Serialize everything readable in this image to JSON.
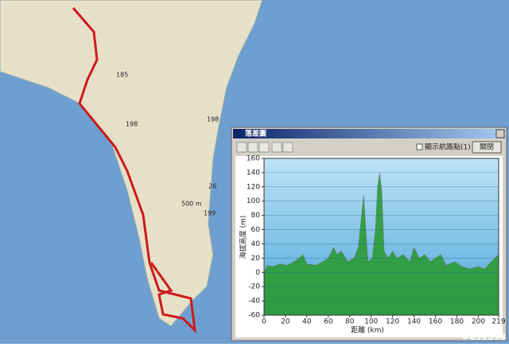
{
  "window": {
    "title": "落差圖",
    "checkbox": "顯示航路點(1)",
    "close_button": "關閉"
  },
  "map": {
    "labels": [
      "185",
      "198",
      "198",
      "199",
      "26",
      "500 m"
    ]
  },
  "watermark": "#651598",
  "chart_data": {
    "type": "area",
    "x_label": "距離 (km)",
    "y_label": "海拔高度 (m)",
    "x": [
      0,
      3,
      8,
      15,
      22,
      28,
      33,
      36,
      40,
      48,
      55,
      60,
      65,
      68,
      72,
      78,
      84,
      88,
      91,
      93,
      95,
      97,
      101,
      104,
      106,
      108,
      110,
      112,
      116,
      120,
      124,
      130,
      136,
      140,
      145,
      150,
      155,
      160,
      165,
      170,
      178,
      185,
      192,
      200,
      206,
      212,
      219
    ],
    "values": [
      0,
      10,
      8,
      12,
      10,
      15,
      20,
      25,
      12,
      10,
      15,
      20,
      35,
      25,
      30,
      15,
      20,
      35,
      80,
      108,
      60,
      15,
      20,
      60,
      120,
      140,
      110,
      30,
      20,
      30,
      20,
      25,
      15,
      35,
      20,
      25,
      15,
      20,
      25,
      10,
      15,
      8,
      5,
      8,
      5,
      15,
      25
    ],
    "color": "#2b9a33",
    "xlim": [
      0,
      219
    ],
    "xticks": [
      0,
      20,
      40,
      60,
      80,
      100,
      120,
      140,
      160,
      180,
      200,
      219
    ],
    "ylim": [
      -60,
      160
    ],
    "yticks": [
      -60,
      -40,
      -20,
      0,
      20,
      40,
      60,
      80,
      100,
      120,
      140,
      160
    ],
    "grid": true
  }
}
